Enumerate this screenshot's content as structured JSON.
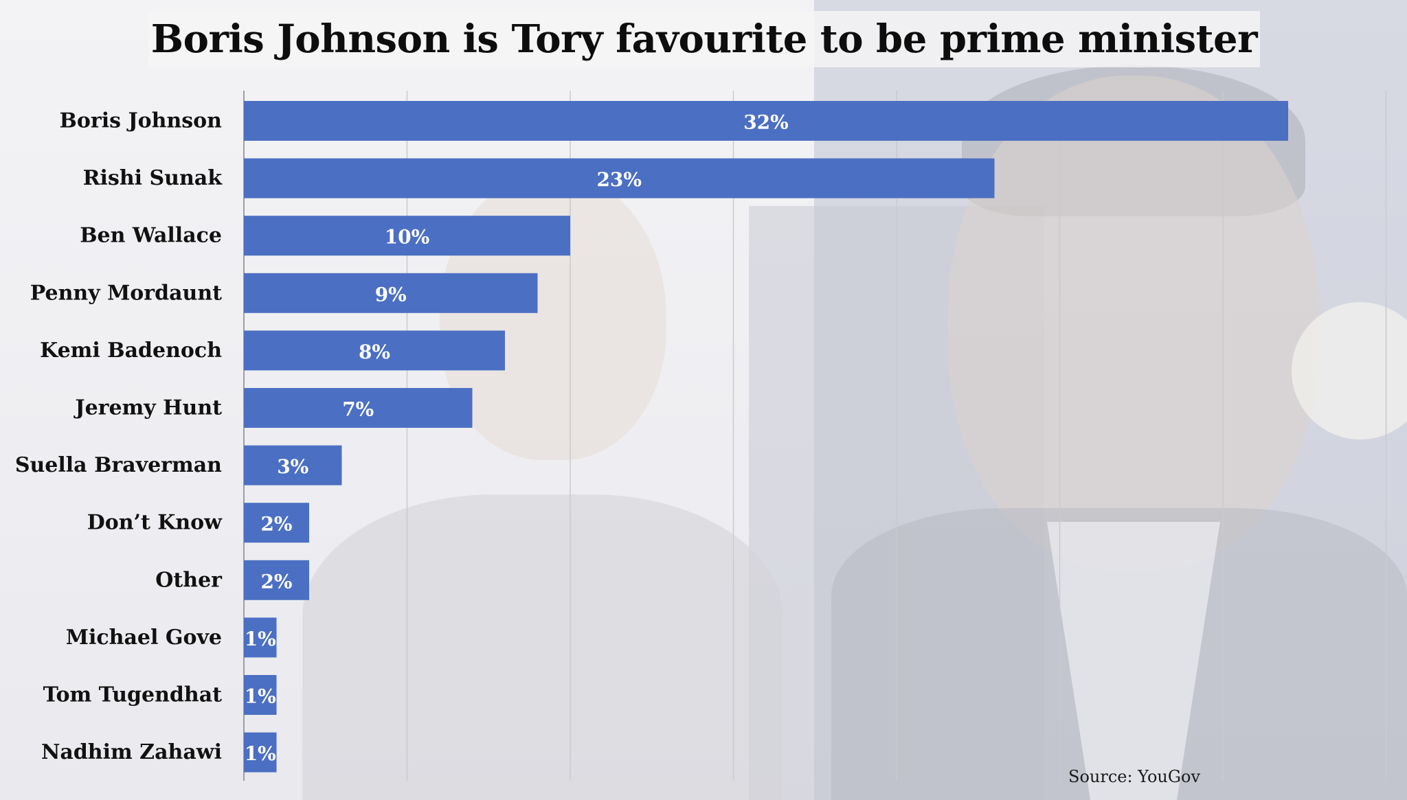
{
  "colors": {
    "bar": "#4b6fc2",
    "gridline": "#c9c9cf",
    "title_box": "#f4f4f6"
  },
  "title": "Boris Johnson is Tory favourite to be prime minister",
  "source": "Source: YouGov",
  "chart_data": {
    "type": "bar",
    "orientation": "horizontal",
    "title": "Boris Johnson is Tory favourite to be prime minister",
    "xlabel": "",
    "ylabel": "",
    "xlim": [
      0,
      40
    ],
    "grid": true,
    "legend": "none",
    "categories": [
      "Boris Johnson",
      "Rishi Sunak",
      "Ben Wallace",
      "Penny Mordaunt",
      "Kemi Badenoch",
      "Jeremy Hunt",
      "Suella Braverman",
      "Don’t Know",
      "Other",
      "Michael Gove",
      "Tom Tugendhat",
      "Nadhim Zahawi"
    ],
    "values": [
      32,
      23,
      10,
      9,
      8,
      7,
      3,
      2,
      2,
      1,
      1,
      1
    ],
    "value_labels": [
      "32%",
      "23%",
      "10%",
      "9%",
      "8%",
      "7%",
      "3%",
      "2%",
      "2%",
      "1%",
      "1%",
      "1%"
    ]
  }
}
